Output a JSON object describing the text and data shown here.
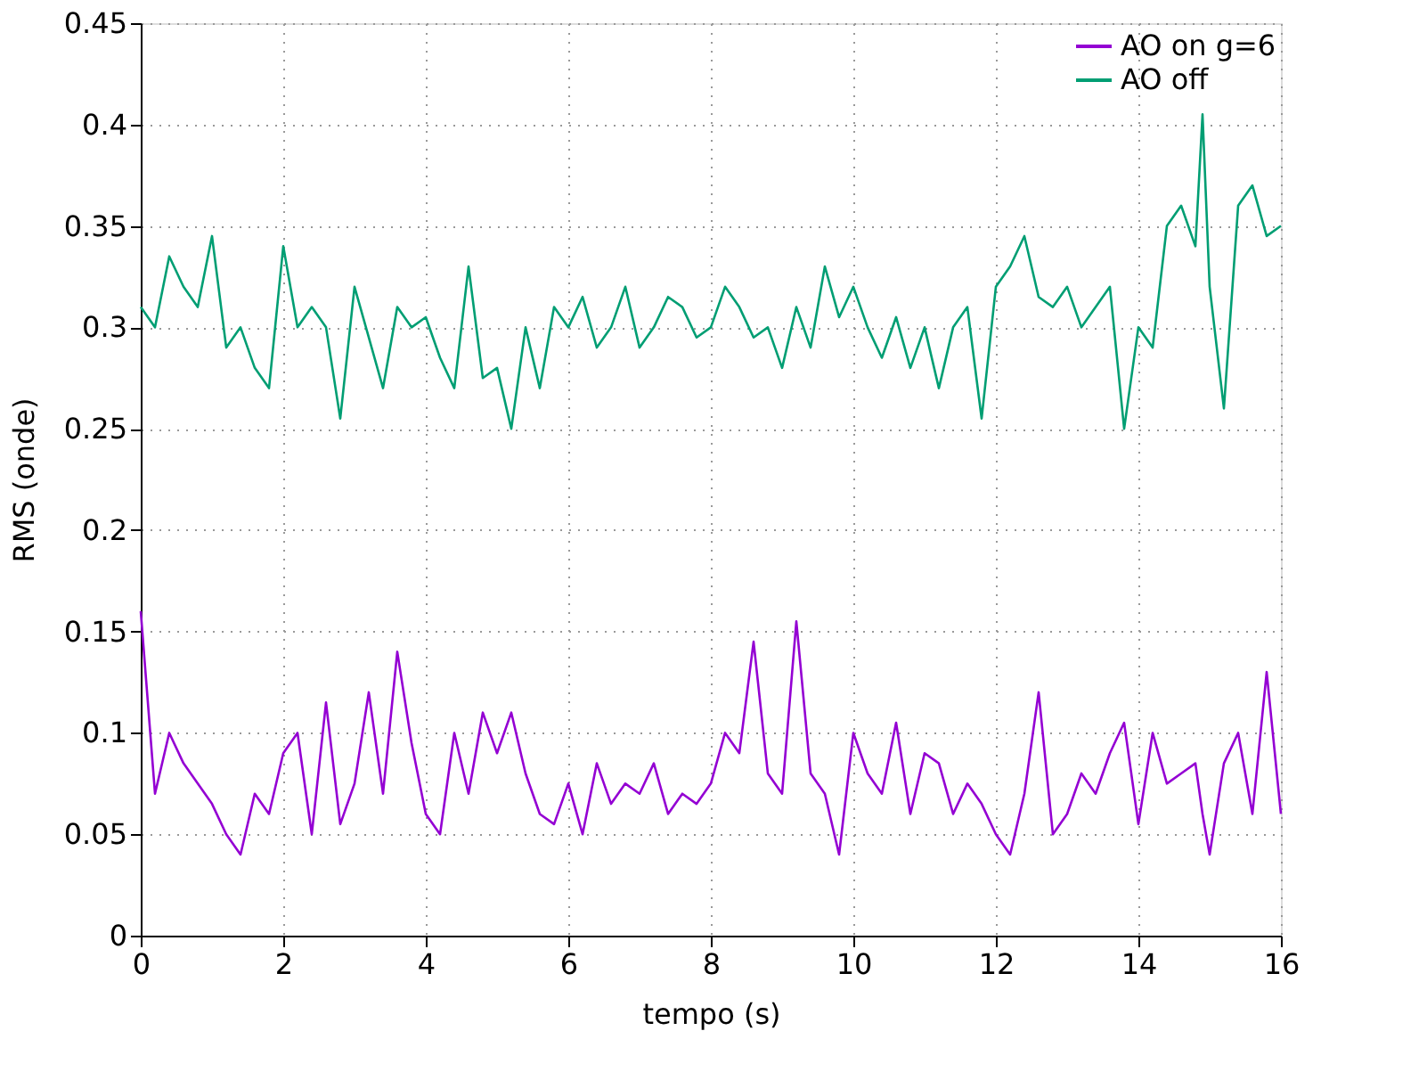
{
  "chart_data": {
    "type": "line",
    "xlabel": "tempo (s)",
    "ylabel": "RMS (onde)",
    "xlim": [
      0,
      16
    ],
    "xticks": [
      0,
      2,
      4,
      6,
      8,
      10,
      12,
      14,
      16
    ],
    "ylim": [
      0,
      0.45
    ],
    "yticks": [
      0,
      0.05,
      0.1,
      0.15,
      0.2,
      0.25,
      0.3,
      0.35,
      0.4,
      0.45
    ],
    "grid": true,
    "legend": "top right",
    "line_style": "solid",
    "marker": "none",
    "x": [
      0,
      0.2,
      0.4,
      0.6,
      0.8,
      1.0,
      1.2,
      1.4,
      1.6,
      1.8,
      2.0,
      2.2,
      2.4,
      2.6,
      2.8,
      3.0,
      3.2,
      3.4,
      3.6,
      3.8,
      4.0,
      4.2,
      4.4,
      4.6,
      4.8,
      5.0,
      5.2,
      5.4,
      5.6,
      5.8,
      6.0,
      6.2,
      6.4,
      6.6,
      6.8,
      7.0,
      7.2,
      7.4,
      7.6,
      7.8,
      8.0,
      8.2,
      8.4,
      8.6,
      8.8,
      9.0,
      9.2,
      9.4,
      9.6,
      9.8,
      10.0,
      10.2,
      10.4,
      10.6,
      10.8,
      11.0,
      11.2,
      11.4,
      11.6,
      11.8,
      12.0,
      12.2,
      12.4,
      12.6,
      12.8,
      13.0,
      13.2,
      13.4,
      13.6,
      13.8,
      14.0,
      14.2,
      14.4,
      14.6,
      14.8,
      14.9,
      15.0,
      15.2,
      15.4,
      15.6,
      15.8,
      16.0
    ],
    "series": [
      {
        "name": "AO on g=6",
        "color": "#9400d3",
        "values": [
          0.16,
          0.07,
          0.1,
          0.085,
          0.075,
          0.065,
          0.05,
          0.04,
          0.07,
          0.06,
          0.09,
          0.1,
          0.05,
          0.115,
          0.055,
          0.075,
          0.12,
          0.07,
          0.14,
          0.095,
          0.06,
          0.05,
          0.1,
          0.07,
          0.11,
          0.09,
          0.11,
          0.08,
          0.06,
          0.055,
          0.075,
          0.05,
          0.085,
          0.065,
          0.075,
          0.07,
          0.085,
          0.06,
          0.07,
          0.065,
          0.075,
          0.1,
          0.09,
          0.145,
          0.08,
          0.07,
          0.155,
          0.08,
          0.07,
          0.04,
          0.1,
          0.08,
          0.07,
          0.105,
          0.06,
          0.09,
          0.085,
          0.06,
          0.075,
          0.065,
          0.05,
          0.04,
          0.07,
          0.12,
          0.05,
          0.06,
          0.08,
          0.07,
          0.09,
          0.105,
          0.055,
          0.1,
          0.075,
          0.08,
          0.085,
          0.06,
          0.04,
          0.085,
          0.1,
          0.06,
          0.13,
          0.06
        ]
      },
      {
        "name": "AO off",
        "color": "#009e73",
        "values": [
          0.31,
          0.3,
          0.335,
          0.32,
          0.31,
          0.345,
          0.29,
          0.3,
          0.28,
          0.27,
          0.34,
          0.3,
          0.31,
          0.3,
          0.255,
          0.32,
          0.295,
          0.27,
          0.31,
          0.3,
          0.305,
          0.285,
          0.27,
          0.33,
          0.275,
          0.28,
          0.25,
          0.3,
          0.27,
          0.31,
          0.3,
          0.315,
          0.29,
          0.3,
          0.32,
          0.29,
          0.3,
          0.315,
          0.31,
          0.295,
          0.3,
          0.32,
          0.31,
          0.295,
          0.3,
          0.28,
          0.31,
          0.29,
          0.33,
          0.305,
          0.32,
          0.3,
          0.285,
          0.305,
          0.28,
          0.3,
          0.27,
          0.3,
          0.31,
          0.255,
          0.32,
          0.33,
          0.345,
          0.315,
          0.31,
          0.32,
          0.3,
          0.31,
          0.32,
          0.25,
          0.3,
          0.29,
          0.35,
          0.36,
          0.34,
          0.405,
          0.32,
          0.26,
          0.36,
          0.37,
          0.345,
          0.35
        ]
      }
    ]
  }
}
